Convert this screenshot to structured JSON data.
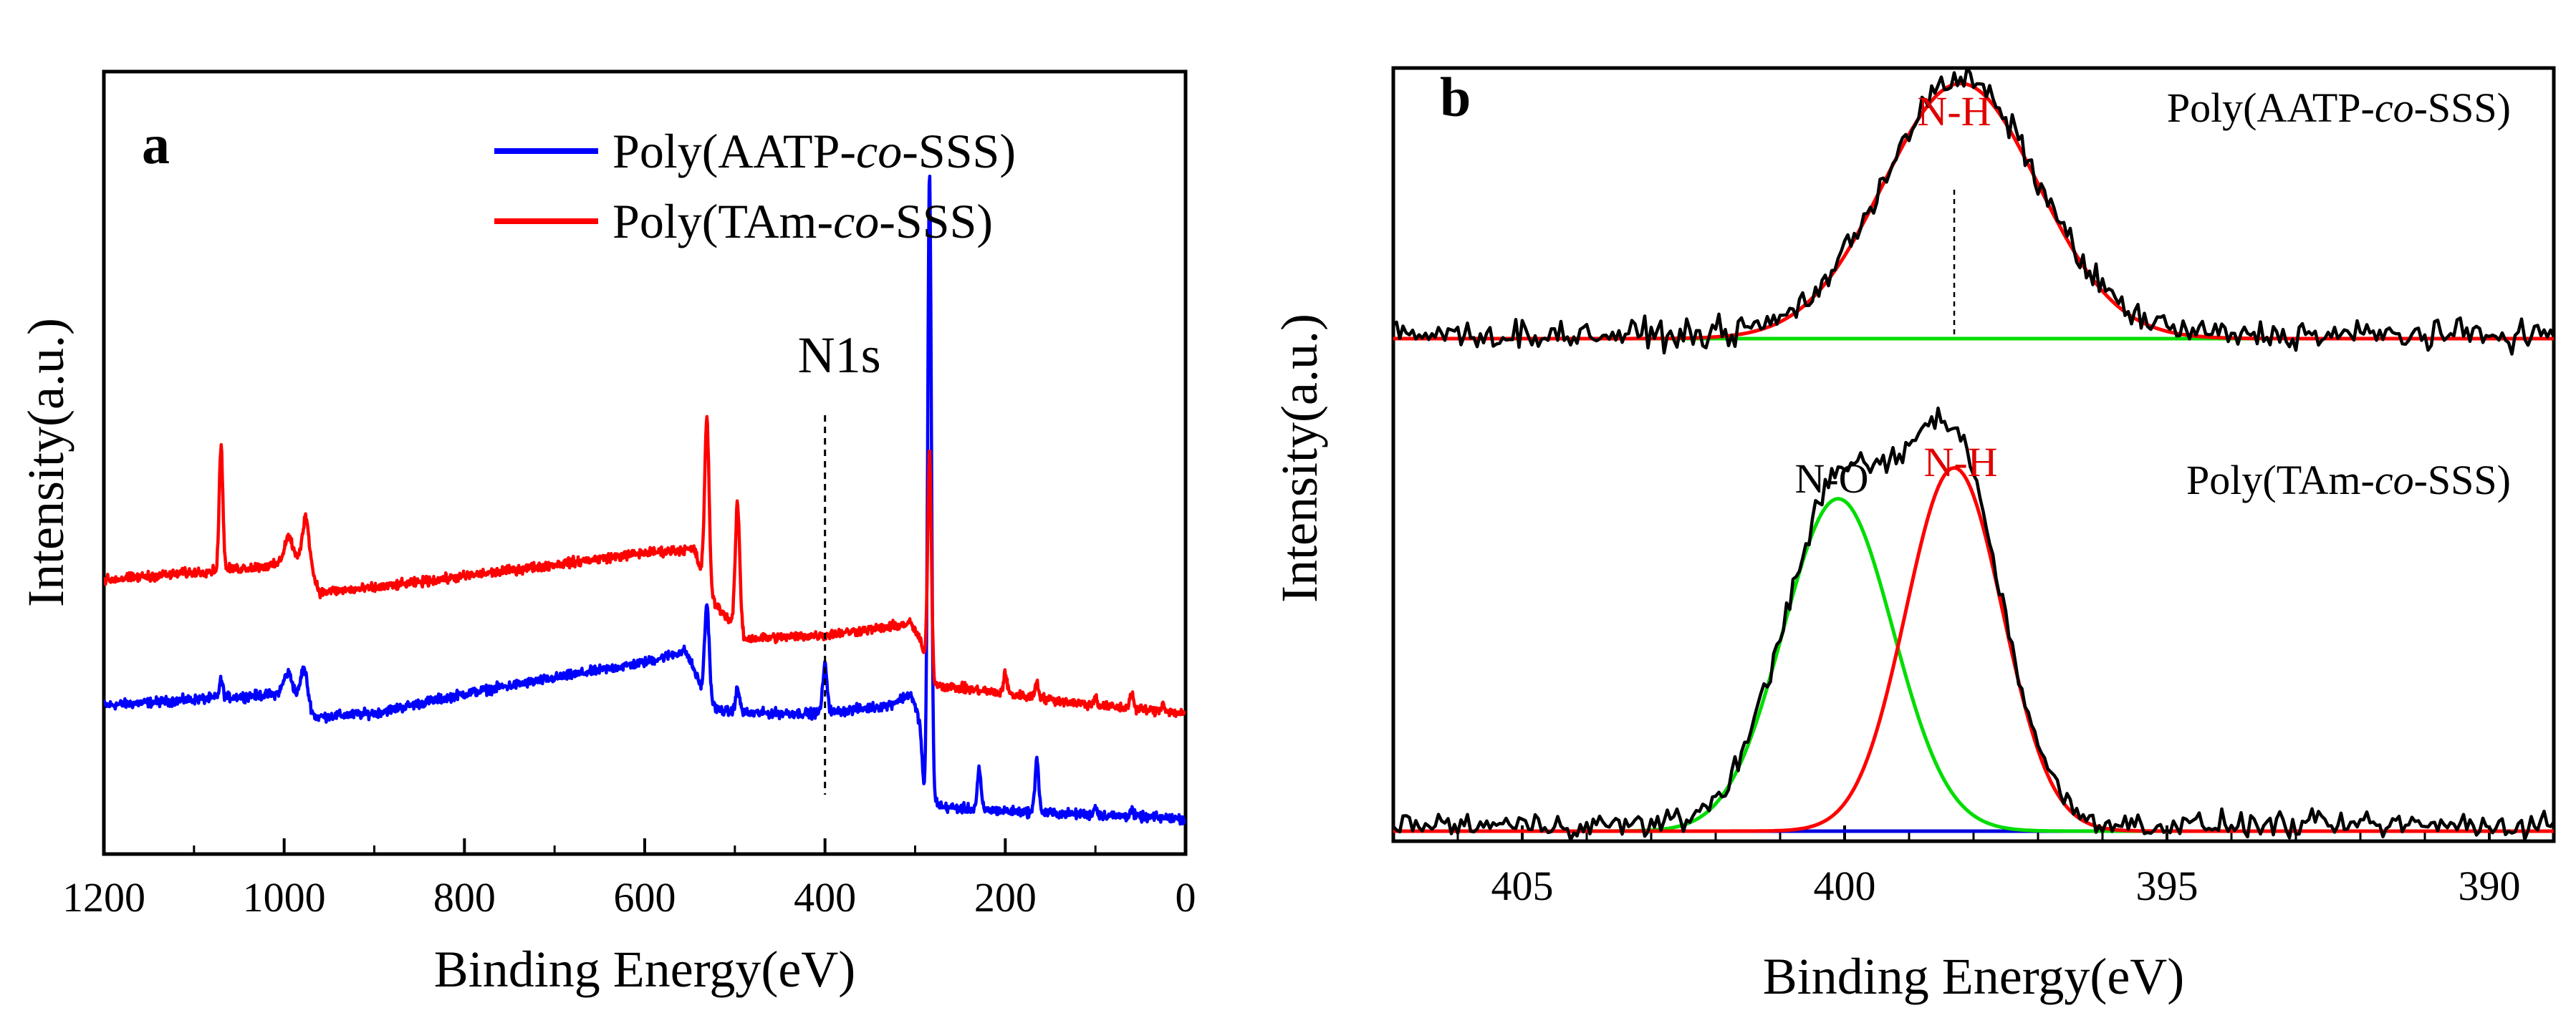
{
  "chart_data": [
    {
      "type": "line",
      "panel": "a",
      "xlabel": "Binding Energy(eV)",
      "ylabel": "Intensity(a.u.)",
      "xlim": [
        1200,
        0
      ],
      "ylim": [
        0,
        1
      ],
      "x_reversed": true,
      "xticks": [
        "1200",
        "1000",
        "800",
        "600",
        "400",
        "200",
        "0"
      ],
      "xtick_values": [
        1200,
        1000,
        800,
        600,
        400,
        200,
        0
      ],
      "legend_position": "top-right",
      "annotations": [
        {
          "text": "N1s",
          "x": 400
        }
      ],
      "series": [
        {
          "name": "Poly(AATP-co-SSS)",
          "name_parts": [
            "Poly(AATP-",
            "co",
            "-SSS)"
          ],
          "color": "#0000ff",
          "baseline": [
            [
              1200,
              0.19
            ],
            [
              1000,
              0.205
            ],
            [
              970,
              0.18
            ],
            [
              965,
              0.175
            ],
            [
              900,
              0.18
            ],
            [
              800,
              0.205
            ],
            [
              700,
              0.225
            ],
            [
              600,
              0.245
            ],
            [
              555,
              0.26
            ],
            [
              545,
              0.235
            ],
            [
              535,
              0.205
            ],
            [
              520,
              0.185
            ],
            [
              500,
              0.18
            ],
            [
              420,
              0.18
            ],
            [
              400,
              0.18
            ],
            [
              330,
              0.19
            ],
            [
              305,
              0.205
            ],
            [
              295,
              0.17
            ],
            [
              290,
              0.08
            ],
            [
              280,
              0.07
            ],
            [
              270,
              0.06
            ],
            [
              200,
              0.055
            ],
            [
              100,
              0.05
            ],
            [
              0,
              0.045
            ]
          ],
          "peaks": [
            [
              1070,
              0.022,
              2
            ],
            [
              995,
              0.03,
              5
            ],
            [
              978,
              0.05,
              4
            ],
            [
              531,
              0.12,
              2.5
            ],
            [
              497,
              0.03,
              2.5
            ],
            [
              400,
              0.06,
              2.5
            ],
            [
              284,
              0.8,
              2
            ],
            [
              229,
              0.05,
              2
            ],
            [
              165,
              0.07,
              2
            ],
            [
              100,
              0.01,
              2
            ],
            [
              60,
              0.008,
              2
            ]
          ]
        },
        {
          "name": "Poly(TAm-co-SSS)",
          "name_parts": [
            "Poly(TAm-",
            "co",
            "-SSS)"
          ],
          "color": "#ff0000",
          "baseline": [
            [
              1200,
              0.35
            ],
            [
              1000,
              0.37
            ],
            [
              975,
              0.37
            ],
            [
              960,
              0.335
            ],
            [
              900,
              0.34
            ],
            [
              800,
              0.355
            ],
            [
              700,
              0.37
            ],
            [
              600,
              0.385
            ],
            [
              545,
              0.39
            ],
            [
              530,
              0.33
            ],
            [
              510,
              0.305
            ],
            [
              490,
              0.275
            ],
            [
              400,
              0.28
            ],
            [
              330,
              0.29
            ],
            [
              305,
              0.295
            ],
            [
              295,
              0.275
            ],
            [
              282,
              0.22
            ],
            [
              270,
              0.215
            ],
            [
              200,
              0.205
            ],
            [
              100,
              0.19
            ],
            [
              0,
              0.18
            ]
          ],
          "peaks": [
            [
              1070,
              0.16,
              2
            ],
            [
              995,
              0.035,
              5
            ],
            [
              976,
              0.06,
              4
            ],
            [
              531,
              0.22,
              2.5
            ],
            [
              497,
              0.16,
              2.5
            ],
            [
              284,
              0.29,
              2
            ],
            [
              200,
              0.025,
              2
            ],
            [
              165,
              0.02,
              2
            ],
            [
              100,
              0.01,
              2
            ],
            [
              60,
              0.02,
              2
            ],
            [
              25,
              0.01,
              2
            ]
          ]
        }
      ]
    },
    {
      "type": "line",
      "panel": "b",
      "xlabel": "Binding Energy(eV)",
      "ylabel": "Intensity(a.u.)",
      "xlim": [
        407,
        389
      ],
      "ylim": [
        0,
        1
      ],
      "x_reversed": true,
      "xticks": [
        "405",
        "400",
        "395",
        "390"
      ],
      "xtick_values": [
        405,
        400,
        395,
        390
      ],
      "sample_labels": [
        {
          "parts": [
            "Poly(AATP-",
            "co",
            "-SSS)"
          ],
          "position": "top-right"
        },
        {
          "parts": [
            "Poly(TAm-",
            "co",
            "-SSS)"
          ],
          "position": "middle-right"
        }
      ],
      "peak_labels": [
        {
          "text": "N-H",
          "x": 398.3,
          "color": "#e00000"
        },
        {
          "text": "N-H",
          "x": 398.2,
          "color": "#e00000"
        },
        {
          "text": "N-O",
          "x": 400.2,
          "color": "#000000"
        }
      ],
      "dashed_marker_x": 398.3,
      "upper": {
        "baseline_y": 0.65,
        "baseline_color": "#00dd00",
        "fit": {
          "center": 398.2,
          "sigma": 1.2,
          "height": 0.33,
          "color": "#ff0000"
        },
        "raw_color": "#000000"
      },
      "lower": {
        "baseline_y": 0.013,
        "baseline_color": "#0000dd",
        "fits": [
          {
            "name": "N-O",
            "center": 400.1,
            "sigma": 0.85,
            "height": 0.43,
            "color": "#00dd00"
          },
          {
            "name": "N-H",
            "center": 398.3,
            "sigma": 0.75,
            "height": 0.47,
            "color": "#ff0000"
          }
        ],
        "raw_color": "#000000"
      }
    }
  ]
}
